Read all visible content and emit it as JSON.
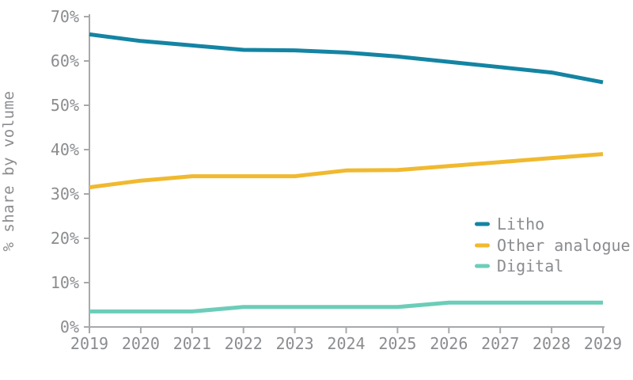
{
  "chart_data": {
    "type": "line",
    "title": "",
    "xlabel": "",
    "ylabel": "% share by volume",
    "x": [
      2019,
      2020,
      2021,
      2022,
      2023,
      2024,
      2025,
      2026,
      2027,
      2028,
      2029
    ],
    "x_tick_labels": [
      "2019",
      "2020",
      "2021",
      "2022",
      "2023",
      "2024",
      "2025",
      "2026",
      "2027",
      "2028",
      "2029"
    ],
    "y_ticks": [
      0,
      10,
      20,
      30,
      40,
      50,
      60,
      70
    ],
    "y_tick_labels": [
      "0%",
      "10%",
      "20%",
      "30%",
      "40%",
      "50%",
      "60%",
      "70%"
    ],
    "ylim": [
      0,
      70
    ],
    "grid": false,
    "legend_position": "right-middle",
    "series": [
      {
        "name": "Litho",
        "color": "#1484A3",
        "values": [
          66,
          64.5,
          63.5,
          62.5,
          62.4,
          61.9,
          61,
          59.8,
          58.6,
          57.4,
          55.2
        ]
      },
      {
        "name": "Other analogue",
        "color": "#F0B92F",
        "values": [
          31.5,
          33,
          34,
          34,
          34,
          35.3,
          35.4,
          36.3,
          37.2,
          38.1,
          39
        ]
      },
      {
        "name": "Digital",
        "color": "#6CCDB8",
        "values": [
          3.5,
          3.5,
          3.5,
          4.5,
          4.5,
          4.5,
          4.5,
          5.5,
          5.5,
          5.5,
          5.5
        ]
      }
    ]
  },
  "colors": {
    "background": "#FFFFFF",
    "axis_line": "#A7A9AC",
    "label_text": "#8A8C8F"
  }
}
